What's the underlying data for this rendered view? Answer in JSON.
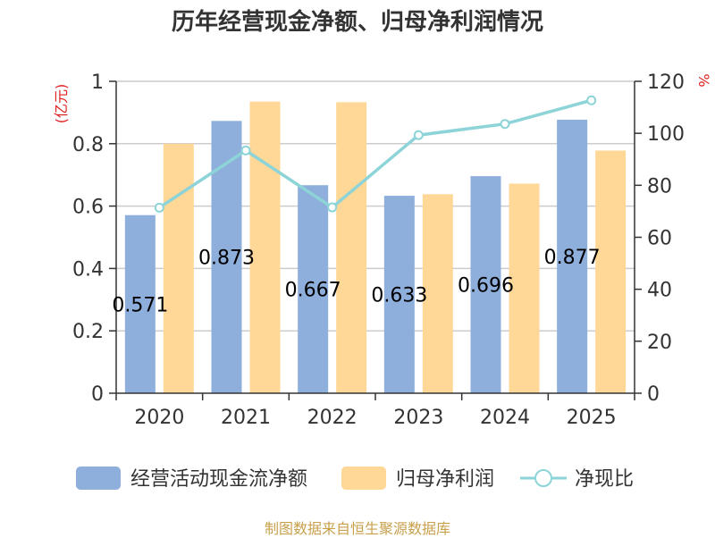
{
  "chart_data": {
    "type": "bar",
    "title": "历年经营现金净额、归母净利润情况",
    "categories": [
      "2020",
      "2021",
      "2022",
      "2023",
      "2024",
      "2025"
    ],
    "series": [
      {
        "name": "经营活动现金流净额",
        "axis": "left",
        "color": "#8eaedc",
        "values": [
          0.571,
          0.873,
          0.667,
          0.633,
          0.696,
          0.877
        ]
      },
      {
        "name": "归母净利润",
        "axis": "left",
        "color": "#ffd796",
        "values": [
          0.8,
          0.935,
          0.933,
          0.638,
          0.672,
          0.778
        ]
      },
      {
        "name": "净现比",
        "axis": "right",
        "type": "line",
        "color": "#8dd4d8",
        "values": [
          71.4,
          93.4,
          71.5,
          99.3,
          103.6,
          112.7
        ]
      }
    ],
    "data_labels": [
      "0.571",
      "0.873",
      "0.667",
      "0.633",
      "0.696",
      "0.877"
    ],
    "ylabel_left": "(亿元)",
    "ylabel_right": "%",
    "ylim_left": [
      0,
      1
    ],
    "yticks_left": [
      "0",
      "0.2",
      "0.4",
      "0.6",
      "0.8",
      "1"
    ],
    "ylim_right": [
      0,
      120
    ],
    "yticks_right": [
      "0",
      "20",
      "40",
      "60",
      "80",
      "100",
      "120"
    ],
    "grid": true,
    "legend": [
      "经营活动现金流净额",
      "归母净利润",
      "净现比"
    ],
    "source": "制图数据来自恒生聚源数据库"
  }
}
